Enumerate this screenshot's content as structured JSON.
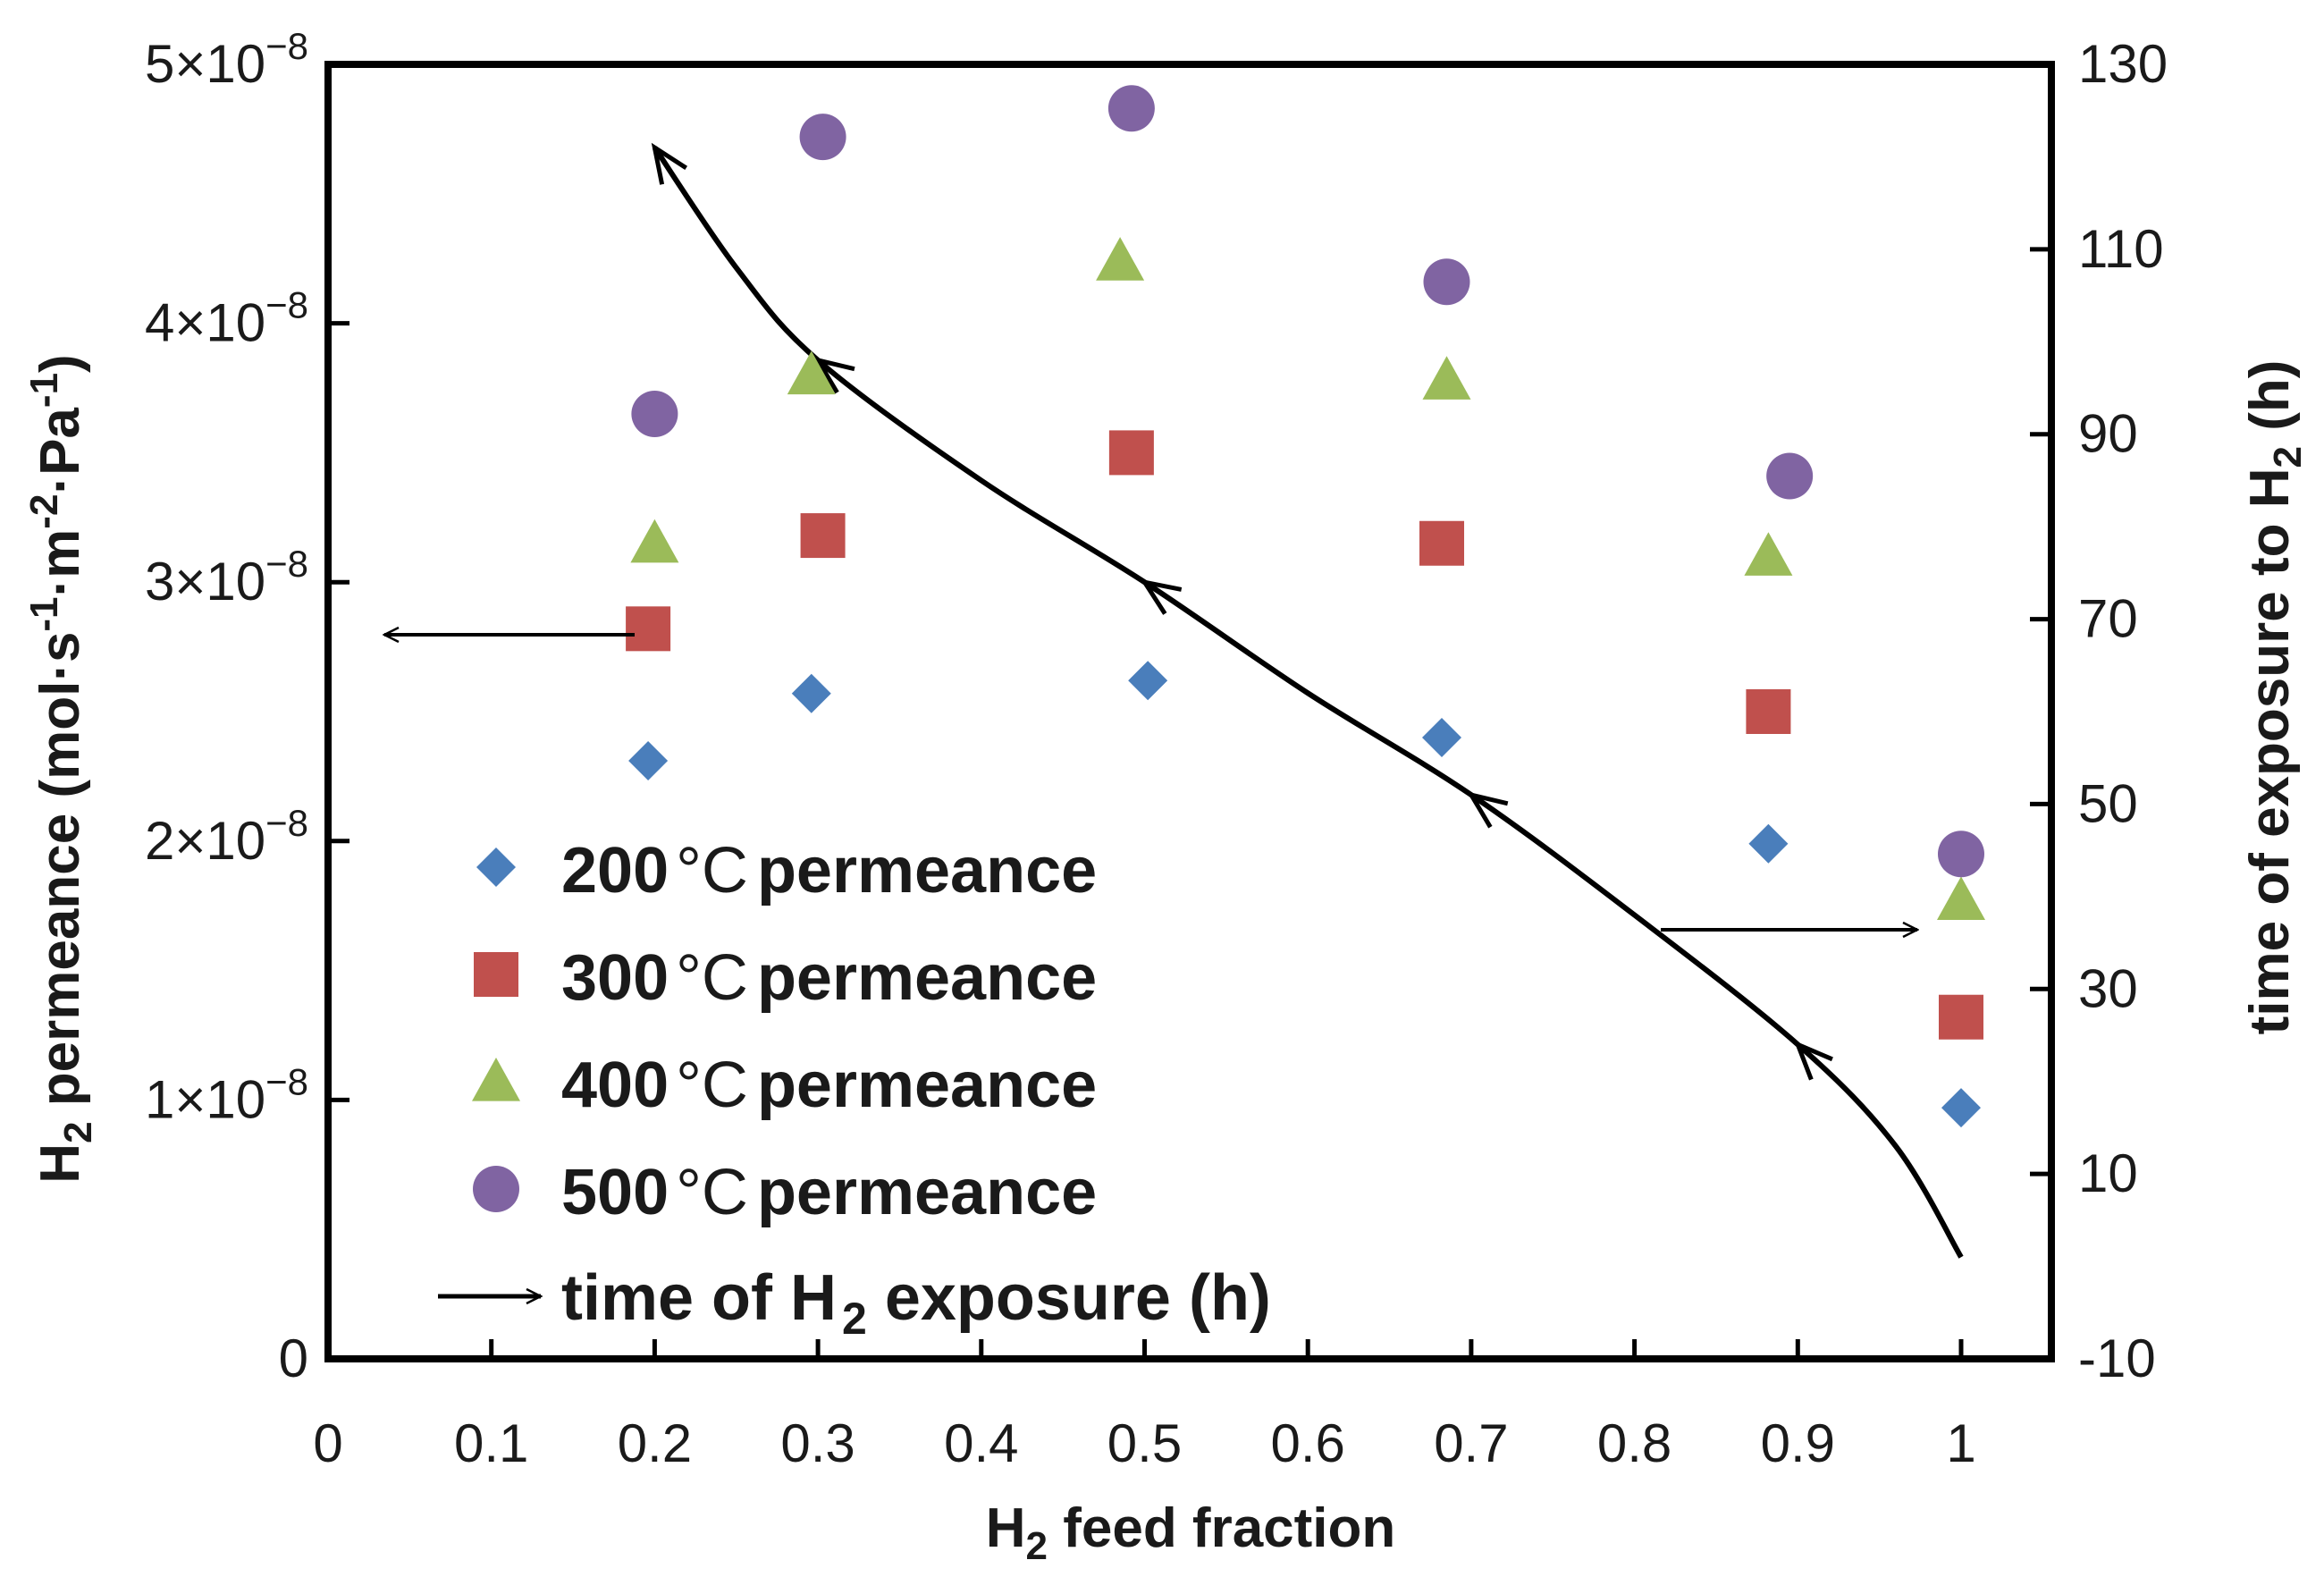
{
  "chart_data": {
    "type": "scatter",
    "xlabel": "H",
    "xlabel_sub": "2",
    "xlabel_rest": " feed fraction",
    "ylabel": "H",
    "ylabel_sub": "2",
    "ylabel_rest": " permeance  (mol·s",
    "ylabel_parts": [
      "-1",
      "·m",
      "-2",
      "·Pa",
      "-1",
      ")"
    ],
    "y2label": "time of exposure to H",
    "y2label_sub": "2",
    "y2label_rest": " (h)",
    "xlim": [
      0,
      1.05
    ],
    "ylim": [
      0,
      5e-08
    ],
    "y2lim": [
      -10,
      130
    ],
    "x_ticks": [
      "0",
      "0.1",
      "0.2",
      "0.3",
      "0.4",
      "0.5",
      "0.6",
      "0.7",
      "0.8",
      "0.9",
      "1"
    ],
    "x_tick_values": [
      0,
      0.1,
      0.2,
      0.3,
      0.4,
      0.5,
      0.6,
      0.7,
      0.8,
      0.9,
      1.0
    ],
    "y_ticks": [
      {
        "value": 0,
        "base": "0",
        "exp": ""
      },
      {
        "value": 1e-08,
        "base": "1×10",
        "exp": "−8"
      },
      {
        "value": 2e-08,
        "base": "2×10",
        "exp": "−8"
      },
      {
        "value": 3e-08,
        "base": "3×10",
        "exp": "−8"
      },
      {
        "value": 4e-08,
        "base": "4×10",
        "exp": "−8"
      },
      {
        "value": 5e-08,
        "base": "5×10",
        "exp": "−8"
      }
    ],
    "y2_ticks": [
      "-10",
      "10",
      "30",
      "50",
      "70",
      "90",
      "110",
      "130"
    ],
    "y2_tick_values": [
      -10,
      10,
      30,
      50,
      70,
      90,
      110,
      130
    ],
    "series": [
      {
        "name": "200°C permeance",
        "legend_temp": "200",
        "legend_unit": "°C",
        "legend_word": "permeance",
        "marker": "diamond",
        "color": "#4a7ebb",
        "x": [
          0.196,
          0.296,
          0.502,
          0.682,
          0.882,
          1.0
        ],
        "y": [
          2.31e-08,
          2.57e-08,
          2.62e-08,
          2.4e-08,
          1.99e-08,
          9.7e-09
        ]
      },
      {
        "name": "300°C permeance",
        "legend_temp": "300",
        "legend_unit": "°C",
        "legend_word": "permeance",
        "marker": "square",
        "color": "#c0504d",
        "x": [
          0.196,
          0.303,
          0.492,
          0.682,
          0.882,
          1.0
        ],
        "y": [
          2.82e-08,
          3.18e-08,
          3.5e-08,
          3.15e-08,
          2.5e-08,
          1.32e-08
        ]
      },
      {
        "name": "400°C permeance",
        "legend_temp": "400",
        "legend_unit": "°C",
        "legend_word": "permeance",
        "marker": "triangle",
        "color": "#9bbb59",
        "x": [
          0.2,
          0.296,
          0.485,
          0.685,
          0.882,
          1.0
        ],
        "y": [
          3.15e-08,
          3.8e-08,
          4.24e-08,
          3.78e-08,
          3.1e-08,
          1.77e-08
        ]
      },
      {
        "name": "500°C permeance",
        "legend_temp": "500",
        "legend_unit": "°C",
        "legend_word": "permeance",
        "marker": "circle",
        "color": "#8064a2",
        "x": [
          0.2,
          0.303,
          0.492,
          0.685,
          0.895,
          1.0
        ],
        "y": [
          3.65e-08,
          4.72e-08,
          4.83e-08,
          4.16e-08,
          3.41e-08,
          1.95e-08
        ]
      }
    ],
    "time_series": {
      "name": "time of H2 exposure (h)",
      "legend_main": "time of H",
      "legend_sub": "2",
      "legend_rest": " exposure (h)",
      "color": "#000000",
      "x": [
        1.0,
        0.96,
        0.9,
        0.8,
        0.7,
        0.6,
        0.5,
        0.4,
        0.3,
        0.25,
        0.2
      ],
      "y": [
        1,
        13,
        24,
        38,
        51,
        62,
        74,
        85,
        98,
        108,
        121
      ],
      "arrows_at": [
        0.9,
        0.7,
        0.5,
        0.3,
        0.2
      ]
    },
    "annotations": [
      {
        "type": "axis-pointer",
        "points_to": "left-axis",
        "series": "300°C permeance"
      },
      {
        "type": "axis-pointer",
        "points_to": "right-axis",
        "series": "time of H2 exposure (h)"
      }
    ],
    "legend_position": "bottom-left",
    "grid": false
  }
}
